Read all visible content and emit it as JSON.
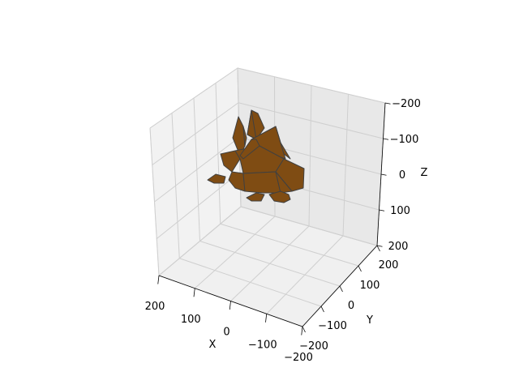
{
  "chart_data": {
    "type": "3d-mesh",
    "title": "",
    "xlabel": "X",
    "ylabel": "Y",
    "zlabel": "Z",
    "xlim": [
      -200,
      200
    ],
    "ylim": [
      -200,
      200
    ],
    "zlim": [
      -200,
      200
    ],
    "z_inverted": true,
    "x_ticks": [
      "200",
      "100",
      "0",
      "−100",
      "−200"
    ],
    "y_ticks": [
      "200",
      "100",
      "0",
      "−100",
      "−200"
    ],
    "z_ticks": [
      "−200",
      "−100",
      "0",
      "100",
      "200"
    ],
    "grid": true,
    "series": [
      {
        "face_color": "#7f4c13",
        "edge_color": "#404040"
      }
    ]
  }
}
